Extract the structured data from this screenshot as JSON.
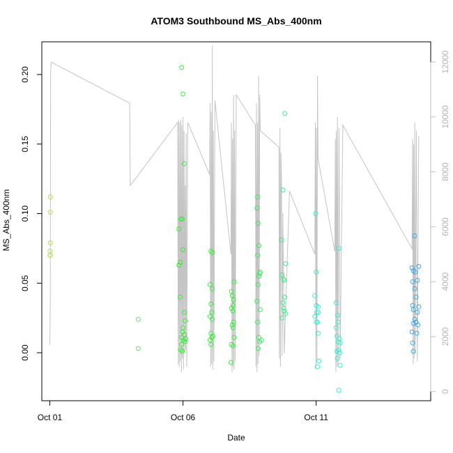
{
  "chart_data": {
    "type": "scatter",
    "title": "ATOM3 Southbound MS_Abs_400nm",
    "xlabel": "Date",
    "ylabel": "MS_Abs_400nm",
    "x_unit": "days since Oct 01",
    "xlim": [
      -0.3,
      14.3
    ],
    "ylim": [
      -0.0345,
      0.2235
    ],
    "y_ticks": [
      0.0,
      0.05,
      0.1,
      0.15,
      0.2
    ],
    "y_tick_labels": [
      "0.00",
      "0.05",
      "0.10",
      "0.15",
      "0.20"
    ],
    "x_ticks": [
      0,
      5,
      10
    ],
    "x_tick_labels": [
      "Oct 01",
      "Oct 06",
      "Oct 11"
    ],
    "y2lim": [
      -335,
      12735
    ],
    "y2_ticks": [
      0,
      2000,
      4000,
      6000,
      8000,
      10000,
      12000
    ],
    "y2_tick_labels": [
      "0",
      "2000",
      "4000",
      "6000",
      "8000",
      "10000",
      "12000"
    ],
    "y2_color": "#bebebe",
    "grid": false,
    "legend": "none",
    "series": [
      {
        "color": "#b4e04a",
        "points": [
          [
            0.02,
            0.112
          ],
          [
            0.02,
            0.101
          ],
          [
            0.02,
            0.079
          ],
          [
            0.01,
            0.073
          ],
          [
            0.01,
            0.07
          ],
          [
            0.02,
            0.07
          ]
        ]
      },
      {
        "color": "#6ee06e",
        "points": [
          [
            3.32,
            0.024
          ],
          [
            3.32,
            0.003
          ]
        ]
      },
      {
        "color": "#33ee33",
        "points": [
          [
            4.95,
            0.205
          ],
          [
            5.0,
            0.186
          ],
          [
            5.05,
            0.136
          ],
          [
            4.92,
            0.096
          ],
          [
            4.97,
            0.096
          ],
          [
            4.85,
            0.089
          ],
          [
            5.0,
            0.074
          ],
          [
            4.9,
            0.065
          ],
          [
            4.85,
            0.063
          ],
          [
            4.9,
            0.04
          ],
          [
            5.05,
            0.029
          ],
          [
            5.08,
            0.023
          ],
          [
            5.0,
            0.018
          ],
          [
            4.98,
            0.015
          ],
          [
            5.05,
            0.013
          ],
          [
            4.95,
            0.011
          ],
          [
            5.1,
            0.01
          ],
          [
            5.02,
            0.009
          ],
          [
            5.07,
            0.008
          ],
          [
            4.95,
            0.006
          ],
          [
            4.92,
            0.002
          ],
          [
            4.97,
            0.001
          ]
        ]
      },
      {
        "color": "#33f033",
        "points": [
          [
            6.05,
            0.073
          ],
          [
            6.1,
            0.072
          ],
          [
            6.02,
            0.049
          ],
          [
            6.1,
            0.046
          ],
          [
            6.05,
            0.035
          ],
          [
            6.08,
            0.029
          ],
          [
            6.02,
            0.026
          ],
          [
            6.1,
            0.024
          ],
          [
            6.05,
            0.014
          ],
          [
            6.12,
            0.012
          ],
          [
            6.08,
            0.011
          ],
          [
            6.02,
            0.009
          ],
          [
            6.05,
            0.006
          ],
          [
            6.92,
            0.051
          ],
          [
            6.82,
            0.044
          ],
          [
            6.85,
            0.041
          ],
          [
            6.9,
            0.038
          ],
          [
            6.88,
            0.034
          ],
          [
            6.82,
            0.032
          ],
          [
            6.87,
            0.03
          ],
          [
            6.9,
            0.022
          ],
          [
            6.85,
            0.02
          ],
          [
            6.88,
            0.018
          ],
          [
            6.92,
            0.011
          ],
          [
            6.82,
            0.006
          ],
          [
            6.87,
            0.005
          ],
          [
            6.8,
            -0.007
          ]
        ]
      },
      {
        "color": "#33f055",
        "points": [
          [
            7.8,
            0.112
          ],
          [
            7.78,
            0.104
          ],
          [
            7.82,
            0.093
          ],
          [
            7.85,
            0.077
          ],
          [
            7.8,
            0.07
          ],
          [
            7.9,
            0.058
          ],
          [
            7.88,
            0.057
          ],
          [
            7.85,
            0.055
          ],
          [
            7.82,
            0.049
          ],
          [
            7.78,
            0.037
          ],
          [
            7.9,
            0.031
          ],
          [
            7.8,
            0.022
          ],
          [
            7.85,
            0.011
          ],
          [
            7.95,
            0.009
          ],
          [
            7.88,
            0.008
          ],
          [
            7.82,
            0.003
          ]
        ]
      },
      {
        "color": "#33f088",
        "points": [
          [
            8.82,
            0.172
          ],
          [
            8.75,
            0.117
          ],
          [
            8.7,
            0.081
          ],
          [
            8.85,
            0.064
          ],
          [
            8.72,
            0.056
          ],
          [
            8.78,
            0.053
          ],
          [
            8.8,
            0.052
          ],
          [
            8.82,
            0.04
          ],
          [
            8.75,
            0.036
          ],
          [
            8.78,
            0.032
          ],
          [
            8.8,
            0.03
          ],
          [
            8.85,
            0.028
          ],
          [
            8.72,
            0.025
          ]
        ]
      },
      {
        "color": "#33f0d0",
        "points": [
          [
            9.98,
            0.1
          ],
          [
            10.0,
            0.058
          ],
          [
            9.95,
            0.041
          ],
          [
            10.0,
            0.034
          ],
          [
            10.08,
            0.033
          ],
          [
            10.02,
            0.029
          ],
          [
            10.08,
            0.029
          ],
          [
            9.95,
            0.026
          ],
          [
            10.05,
            0.022
          ],
          [
            10.0,
            0.022
          ],
          [
            10.08,
            0.014
          ],
          [
            10.1,
            -0.006
          ],
          [
            10.05,
            -0.01
          ],
          [
            10.85,
            0.075
          ],
          [
            10.75,
            0.036
          ],
          [
            10.8,
            0.027
          ],
          [
            10.82,
            0.022
          ],
          [
            10.75,
            0.018
          ],
          [
            10.78,
            0.012
          ],
          [
            10.88,
            0.01
          ],
          [
            10.82,
            0.008
          ],
          [
            10.9,
            0.007
          ],
          [
            10.85,
            0.002
          ],
          [
            10.78,
            0.001
          ],
          [
            10.88,
            0.0
          ],
          [
            10.8,
            -0.004
          ],
          [
            10.9,
            -0.009
          ],
          [
            10.85,
            -0.027
          ]
        ]
      },
      {
        "color": "#33aaee",
        "points": [
          [
            13.7,
            0.084
          ],
          [
            13.6,
            0.061
          ],
          [
            13.85,
            0.062
          ],
          [
            13.65,
            0.059
          ],
          [
            13.72,
            0.058
          ],
          [
            13.62,
            0.051
          ],
          [
            13.8,
            0.052
          ],
          [
            13.7,
            0.046
          ],
          [
            13.75,
            0.04
          ],
          [
            13.62,
            0.034
          ],
          [
            13.85,
            0.033
          ],
          [
            13.65,
            0.031
          ],
          [
            13.8,
            0.029
          ],
          [
            13.7,
            0.024
          ],
          [
            13.75,
            0.022
          ],
          [
            13.65,
            0.021
          ],
          [
            13.82,
            0.02
          ],
          [
            13.6,
            0.015
          ],
          [
            13.78,
            0.014
          ],
          [
            13.62,
            0.007
          ],
          [
            13.65,
            0.001
          ]
        ]
      }
    ],
    "gray_line": {
      "color": "#c4c4c4",
      "points": [
        [
          0.0,
          1700
        ],
        [
          0.02,
          3200
        ],
        [
          0.03,
          11600
        ],
        [
          0.05,
          12000
        ],
        [
          3.0,
          10500
        ],
        [
          3.02,
          7500
        ],
        [
          4.8,
          9800
        ],
        [
          4.82,
          1000
        ],
        [
          4.84,
          9900
        ],
        [
          4.86,
          900
        ],
        [
          4.88,
          9800
        ],
        [
          4.9,
          1100
        ],
        [
          4.92,
          9900
        ],
        [
          4.94,
          700
        ],
        [
          4.96,
          9700
        ],
        [
          4.98,
          1200
        ],
        [
          5.0,
          10000
        ],
        [
          5.02,
          800
        ],
        [
          5.04,
          9500
        ],
        [
          5.06,
          1400
        ],
        [
          5.08,
          7500
        ],
        [
          5.1,
          1500
        ],
        [
          5.12,
          9400
        ],
        [
          5.14,
          900
        ],
        [
          5.18,
          9800
        ],
        [
          6.0,
          7900
        ],
        [
          6.02,
          10500
        ],
        [
          6.04,
          900
        ],
        [
          6.06,
          10200
        ],
        [
          6.08,
          1000
        ],
        [
          6.1,
          12600
        ],
        [
          6.12,
          800
        ],
        [
          6.14,
          9500
        ],
        [
          6.16,
          1100
        ],
        [
          6.2,
          10600
        ],
        [
          6.8,
          5000
        ],
        [
          6.82,
          9800
        ],
        [
          6.84,
          700
        ],
        [
          6.86,
          9200
        ],
        [
          6.88,
          900
        ],
        [
          6.9,
          10800
        ],
        [
          6.92,
          800
        ],
        [
          6.94,
          9500
        ],
        [
          6.96,
          1100
        ],
        [
          7.0,
          10800
        ],
        [
          7.72,
          9700
        ],
        [
          7.74,
          900
        ],
        [
          7.76,
          10500
        ],
        [
          7.78,
          700
        ],
        [
          7.8,
          9800
        ],
        [
          7.82,
          1000
        ],
        [
          7.84,
          11500
        ],
        [
          7.86,
          1300
        ],
        [
          7.88,
          10800
        ],
        [
          7.9,
          9500
        ],
        [
          8.6,
          8900
        ],
        [
          8.62,
          1200
        ],
        [
          8.64,
          9600
        ],
        [
          8.66,
          900
        ],
        [
          8.68,
          8700
        ],
        [
          8.7,
          7500
        ],
        [
          8.72,
          1300
        ],
        [
          8.75,
          6500
        ],
        [
          8.8,
          1400
        ],
        [
          9.0,
          7300
        ],
        [
          9.95,
          5000
        ],
        [
          9.97,
          9800
        ],
        [
          9.99,
          800
        ],
        [
          10.01,
          9600
        ],
        [
          10.03,
          1100
        ],
        [
          10.05,
          11500
        ],
        [
          10.07,
          8500
        ],
        [
          10.7,
          5100
        ],
        [
          10.72,
          9200
        ],
        [
          10.74,
          700
        ],
        [
          10.76,
          9500
        ],
        [
          10.78,
          900
        ],
        [
          10.8,
          10000
        ],
        [
          10.82,
          1000
        ],
        [
          10.86,
          9600
        ],
        [
          10.9,
          1200
        ],
        [
          11.0,
          9700
        ],
        [
          13.6,
          5200
        ],
        [
          13.62,
          9200
        ],
        [
          13.64,
          1000
        ],
        [
          13.66,
          9000
        ],
        [
          13.68,
          1200
        ],
        [
          13.7,
          9800
        ],
        [
          13.72,
          1400
        ],
        [
          13.76,
          9500
        ],
        [
          13.8,
          1100
        ],
        [
          13.85,
          9300
        ]
      ]
    }
  }
}
